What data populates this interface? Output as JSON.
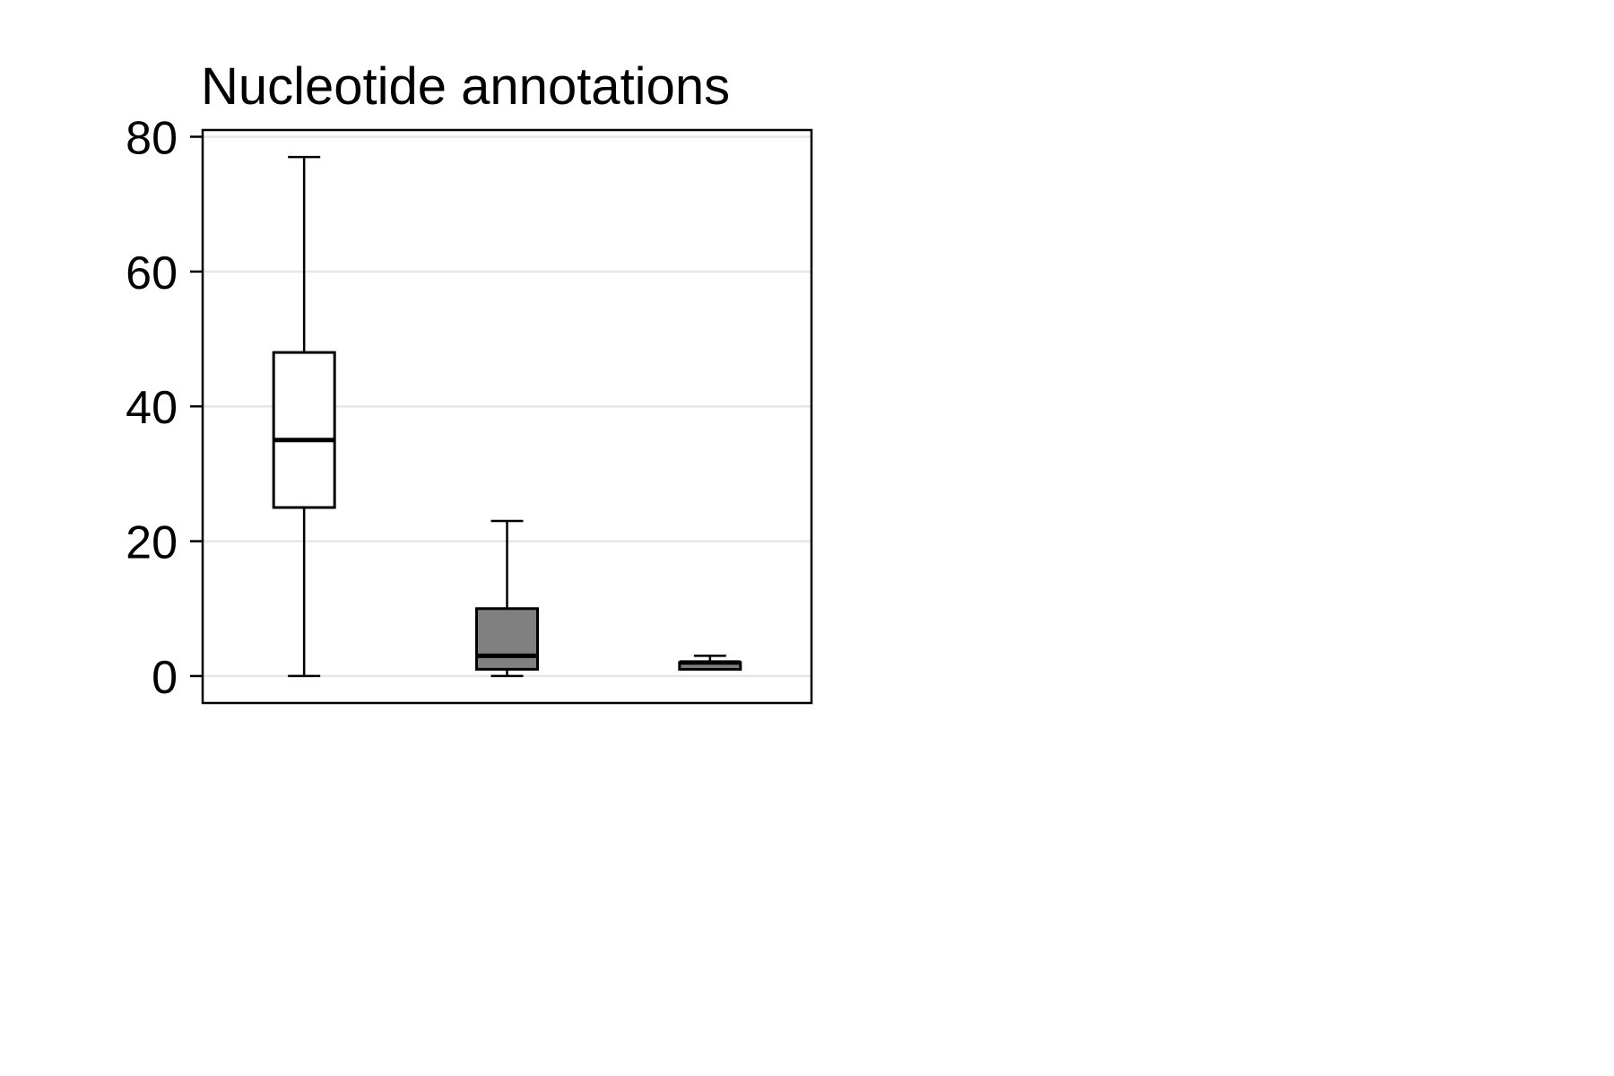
{
  "chart_data": {
    "type": "box",
    "title": "Nucleotide annotations",
    "xlabel": "",
    "ylabel": "",
    "ylim": [
      -4,
      81
    ],
    "yticks": [
      0,
      20,
      40,
      60,
      80
    ],
    "ytick_labels": [
      "0",
      "20",
      "40",
      "60",
      "80"
    ],
    "grid": "horizontal",
    "legend": "none",
    "boxes": [
      {
        "whisker_low": 0,
        "q1": 25,
        "median": 35,
        "q3": 48,
        "whisker_high": 77,
        "fill": "#ffffff"
      },
      {
        "whisker_low": 0,
        "q1": 1,
        "median": 3,
        "q3": 10,
        "whisker_high": 23,
        "fill": "#808080"
      },
      {
        "whisker_low": 1,
        "q1": 1,
        "median": 2,
        "q3": 2,
        "whisker_high": 3,
        "fill": "#808080"
      }
    ]
  },
  "colors": {
    "grid": "#e6e6e6",
    "axis": "#000000"
  }
}
